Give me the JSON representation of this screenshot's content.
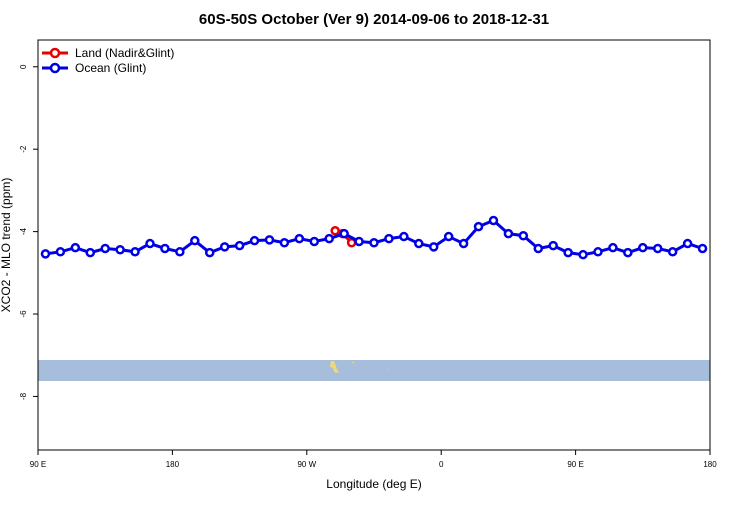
{
  "chart_data": {
    "type": "line",
    "title": "60S-50S October (Ver 9)   2014-09-06 to 2018-12-31",
    "xlabel": "Longitude (deg E)",
    "ylabel": "XCO2 - MLO trend (ppm)",
    "xlim": [
      90,
      540
    ],
    "ylim": [
      -9.3,
      0.65
    ],
    "xticks": [
      {
        "value": 90,
        "label": "90 E"
      },
      {
        "value": 180,
        "label": "180"
      },
      {
        "value": 270,
        "label": "90 W"
      },
      {
        "value": 360,
        "label": "0"
      },
      {
        "value": 450,
        "label": "90 E"
      },
      {
        "value": 540,
        "label": "180"
      }
    ],
    "yticks": [
      0,
      -2,
      -4,
      -6,
      -8
    ],
    "legend": "top-left",
    "series": [
      {
        "name": "Land (Nadir&Glint)",
        "color": "#e60000",
        "x": [
          289,
          294,
          300
        ],
        "values": [
          -3.98,
          -4.05,
          -4.27
        ]
      },
      {
        "name": "Ocean (Glint)",
        "color": "#0000e6",
        "x": [
          95,
          105,
          115,
          125,
          135,
          145,
          155,
          165,
          175,
          185,
          195,
          205,
          215,
          225,
          235,
          245,
          255,
          265,
          275,
          285,
          295,
          305,
          315,
          325,
          335,
          345,
          355,
          365,
          375,
          385,
          395,
          405,
          415,
          425,
          435,
          445,
          455,
          465,
          475,
          485,
          495,
          505,
          515,
          525,
          535
        ],
        "values": [
          -4.54,
          -4.49,
          -4.39,
          -4.51,
          -4.41,
          -4.44,
          -4.49,
          -4.29,
          -4.41,
          -4.49,
          -4.22,
          -4.51,
          -4.37,
          -4.34,
          -4.22,
          -4.2,
          -4.27,
          -4.17,
          -4.24,
          -4.17,
          -4.05,
          -4.24,
          -4.27,
          -4.17,
          -4.12,
          -4.29,
          -4.37,
          -4.12,
          -4.29,
          -3.88,
          -3.73,
          -4.05,
          -4.1,
          -4.41,
          -4.34,
          -4.51,
          -4.56,
          -4.49,
          -4.39,
          -4.51,
          -4.39,
          -4.41,
          -4.49,
          -4.29,
          -4.41
        ]
      }
    ]
  }
}
